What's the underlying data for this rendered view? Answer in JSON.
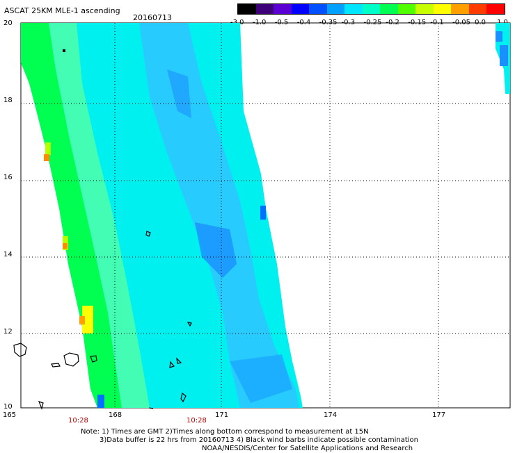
{
  "header": {
    "title": "ASCAT 25KM MLE-1 ascending",
    "date": "20160713"
  },
  "colorbar": {
    "ticks": [
      "-3.0",
      "-1.0",
      "-0.5",
      "-0.4",
      "-0.35",
      "-0.3",
      "-0.25",
      "-0.2",
      "-0.15",
      "-0.1",
      "-0.05",
      "0.0",
      "1.0"
    ],
    "colors": [
      "#000000",
      "#3c0078",
      "#5a00d2",
      "#0000ff",
      "#0050ff",
      "#00a0ff",
      "#00e6ff",
      "#00ffc8",
      "#00ff50",
      "#50ff00",
      "#c8ff00",
      "#ffff00",
      "#ffa000",
      "#ff3c00",
      "#ff0000"
    ]
  },
  "axes": {
    "lat_labels": [
      "20",
      "18",
      "16",
      "14",
      "12",
      "10"
    ],
    "lon_labels": [
      "165",
      "168",
      "171",
      "174",
      "177"
    ],
    "time_labels": [
      "10:28",
      "10:28"
    ]
  },
  "notes": {
    "line1": "Note: 1) Times are GMT 2)Times along bottom correspond to measurement at 15N",
    "line2": "3)Data buffer is 22 hrs from 20160713 4) Black wind barbs indicate possible contamination",
    "line3": "NOAA/NESDIS/Center for Satellite Applications and Research"
  },
  "colors": {
    "swath_base": "#00f0f0",
    "swath_blue": "#00b4ff",
    "swath_green": "#00ff50",
    "swath_yellow": "#ffff00",
    "swath_orange": "#ff8c00",
    "time_label": "#c00000"
  }
}
